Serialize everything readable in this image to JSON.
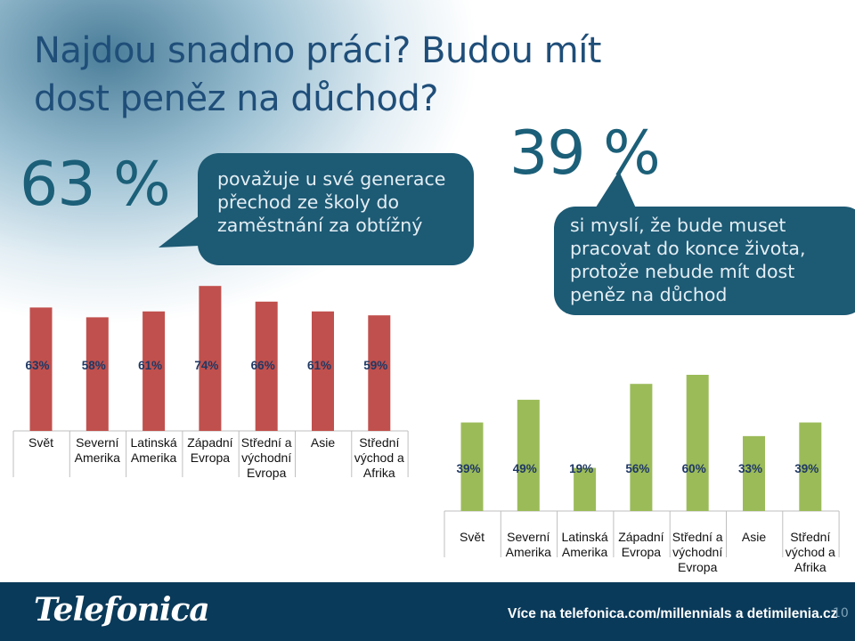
{
  "title": "Najdou snadno práci? Budou mít dost peněz na důchod?",
  "callout_left": {
    "value": "63 %",
    "text_lines": [
      "považuje u své generace",
      "přechod ze školy do",
      "zaměstnání za obtížný"
    ]
  },
  "callout_right": {
    "value": "39 %",
    "text_lines": [
      "si myslí, že bude muset",
      "pracovat do konce života,",
      "protože nebude mít dost",
      "peněz na důchod"
    ]
  },
  "colors": {
    "bar_left": "#c0504d",
    "bar_right": "#9bbb59",
    "bubble": "#1d5a74",
    "footer": "#0a3a5a"
  },
  "chart_data": [
    {
      "type": "bar",
      "categories": [
        [
          "Svět"
        ],
        [
          "Severní",
          "Amerika"
        ],
        [
          "Latinská",
          "Amerika"
        ],
        [
          "Západní",
          "Evropa"
        ],
        [
          "Střední a",
          "východní",
          "Evropa"
        ],
        [
          "Asie"
        ],
        [
          "Střední",
          "východ a",
          "Afrika"
        ]
      ],
      "values": [
        63,
        58,
        61,
        74,
        66,
        61,
        59
      ],
      "data_labels": [
        "63%",
        "58%",
        "61%",
        "74%",
        "66%",
        "61%",
        "59%"
      ],
      "color": "#c0504d"
    },
    {
      "type": "bar",
      "categories": [
        [
          "Svět"
        ],
        [
          "Severní",
          "Amerika"
        ],
        [
          "Latinská",
          "Amerika"
        ],
        [
          "Západní",
          "Evropa"
        ],
        [
          "Střední a",
          "východní",
          "Evropa"
        ],
        [
          "Asie"
        ],
        [
          "Střední",
          "východ a",
          "Afrika"
        ]
      ],
      "values": [
        39,
        49,
        19,
        56,
        60,
        33,
        39
      ],
      "data_labels": [
        "39%",
        "49%",
        "19%",
        "56%",
        "60%",
        "33%",
        "39%"
      ],
      "color": "#9bbb59"
    }
  ],
  "footer": {
    "logo": "Telefonica",
    "link": "Více na telefonica.com/millennials a detimilenia.cz",
    "page": "10"
  }
}
